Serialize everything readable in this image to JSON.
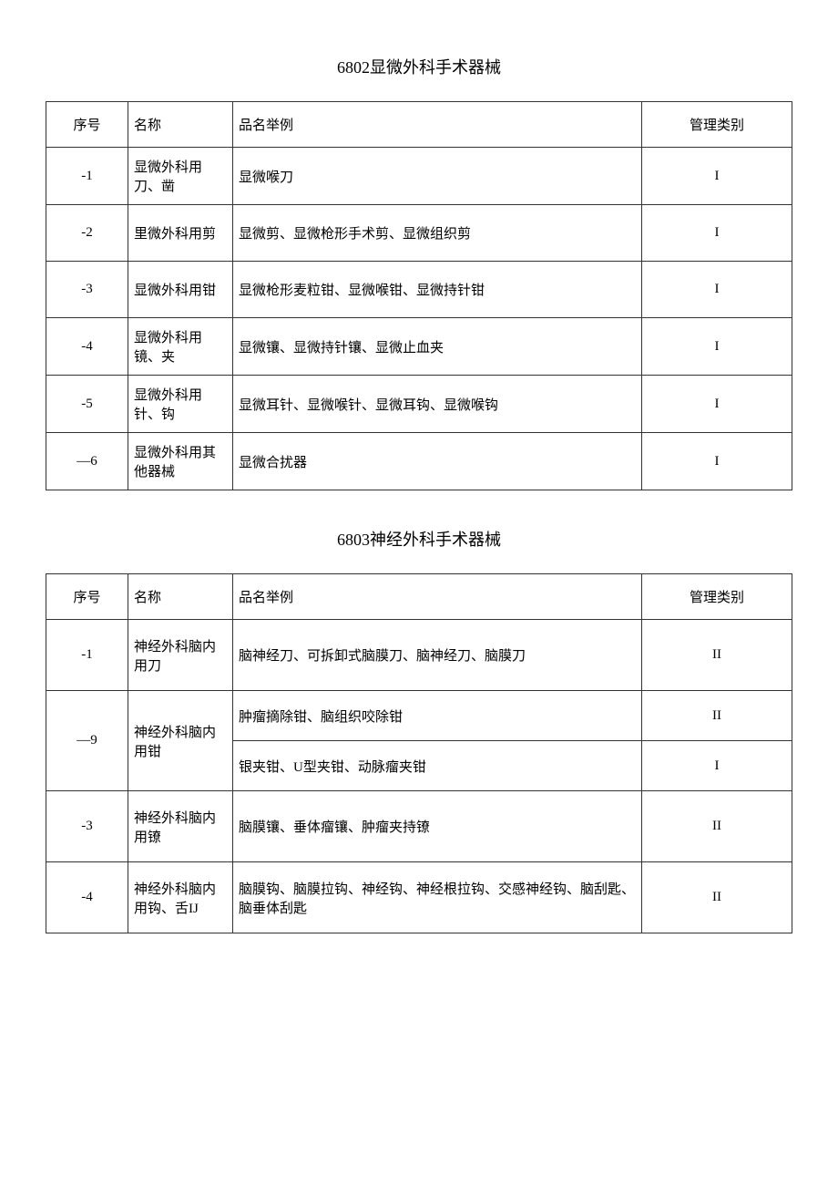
{
  "section1": {
    "title": "6802显微外科手术器械",
    "headers": {
      "seq": "序号",
      "name": "名称",
      "example": "品名举例",
      "category": "管理类别"
    },
    "rows": [
      {
        "seq": "-1",
        "name": "显微外科用刀、凿",
        "example": "显微喉刀",
        "category": "I"
      },
      {
        "seq": "-2",
        "name": "里微外科用剪",
        "example": "显微剪、显微枪形手术剪、显微组织剪",
        "category": "I"
      },
      {
        "seq": "-3",
        "name": "显微外科用钳",
        "example": "显微枪形麦粒钳、显微喉钳、显微持针钳",
        "category": "I"
      },
      {
        "seq": "-4",
        "name": "显微外科用镜、夹",
        "example": "显微镶、显微持针镶、显微止血夹",
        "category": "I"
      },
      {
        "seq": "-5",
        "name": "显微外科用针、钩",
        "example": "显微耳针、显微喉针、显微耳钩、显微喉钩",
        "category": "I"
      },
      {
        "seq": "—6",
        "name": "显微外科用其他器械",
        "example": "显微合扰器",
        "category": "I"
      }
    ]
  },
  "section2": {
    "title": "6803神经外科手术器械",
    "headers": {
      "seq": "序号",
      "name": "名称",
      "example": "品名举例",
      "category": "管理类别"
    },
    "rows": [
      {
        "seq": "-1",
        "name": "神经外科脑内用刀",
        "example": "脑神经刀、可拆卸式脑膜刀、脑神经刀、脑膜刀",
        "category": "II"
      },
      {
        "seq": "—9",
        "name": "神经外科脑内用钳",
        "example1": "肿瘤摘除钳、脑组织咬除钳",
        "category1": "II",
        "example2": "银夹钳、U型夹钳、动脉瘤夹钳",
        "category2": "I"
      },
      {
        "seq": "-3",
        "name": "神经外科脑内用镣",
        "example": "脑膜镶、垂体瘤镶、肿瘤夹持镣",
        "category": "II"
      },
      {
        "seq": "-4",
        "name": "神经外科脑内用钩、舌IJ",
        "example": "脑膜钩、脑膜拉钩、神经钩、神经根拉钩、交感神经钩、脑刮匙、脑垂体刮匙",
        "category": "II"
      }
    ]
  }
}
